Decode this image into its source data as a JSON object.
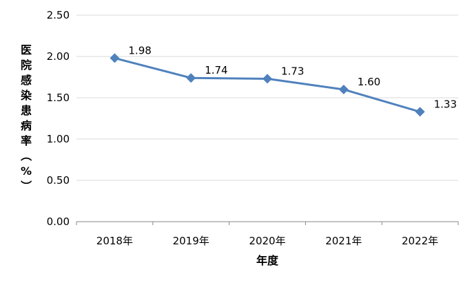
{
  "chart_data": {
    "type": "line",
    "categories": [
      "2018年",
      "2019年",
      "2020年",
      "2021年",
      "2022年"
    ],
    "series": [
      {
        "values": [
          1.98,
          1.74,
          1.73,
          1.6,
          1.33
        ],
        "labels": [
          "1.98",
          "1.74",
          "1.73",
          "1.60",
          "1.33"
        ]
      }
    ],
    "xlabel": "年度",
    "ylabel": "医院感染患病率（%）",
    "ylim": [
      0,
      2.5
    ],
    "yticks": [
      "0.00",
      "0.50",
      "1.00",
      "1.50",
      "2.00",
      "2.50"
    ],
    "grid": true,
    "legend": "none",
    "colors": {
      "line": "#4F81BD",
      "marker": "#4F81BD",
      "grid": "#D9D9D9",
      "axis": "#868686"
    }
  }
}
